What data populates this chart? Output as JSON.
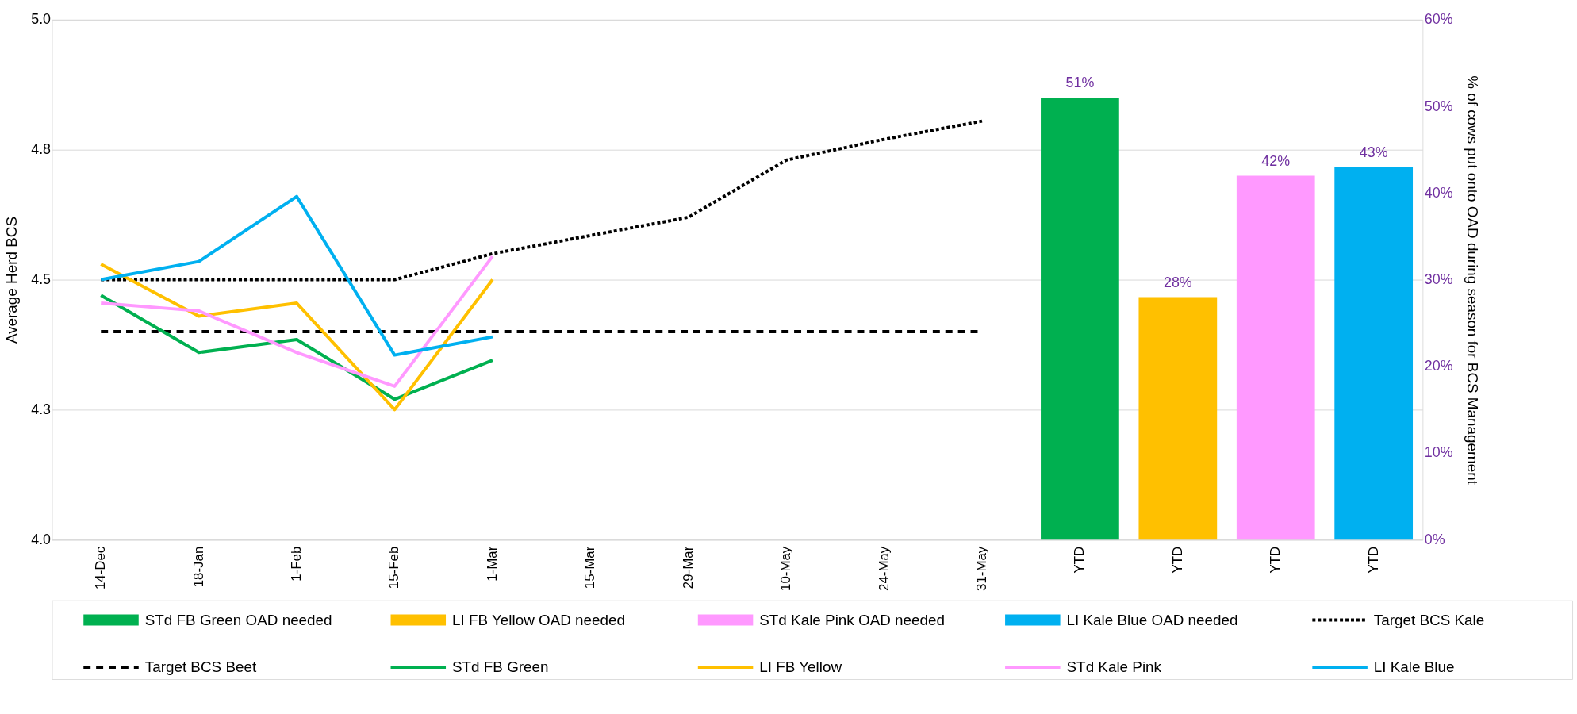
{
  "chart_data": {
    "type": "bar",
    "categories": [
      "14-Dec",
      "18-Jan",
      "1-Feb",
      "15-Feb",
      "1-Mar",
      "15-Mar",
      "29-Mar",
      "10-May",
      "24-May",
      "31-May",
      "YTD",
      "YTD",
      "YTD",
      "YTD"
    ],
    "ylabel": "Average Herd BCS",
    "y2label": "% of cows put onto OAD during season for BCS Management",
    "ylim": [
      4,
      5
    ],
    "yticks": [
      {
        "value": 4,
        "label": "4.0"
      },
      {
        "value": 4.25,
        "label": "4.3"
      },
      4.5,
      {
        "value": 4.75,
        "label": "4.8"
      },
      {
        "value": 5,
        "label": "5.0"
      }
    ],
    "y2lim": [
      0,
      60
    ],
    "y2ticks": [
      {
        "value": 0,
        "label": "0%"
      },
      {
        "value": 10,
        "label": "10%"
      },
      {
        "value": 20,
        "label": "20%"
      },
      {
        "value": 30,
        "label": "30%"
      },
      {
        "value": 40,
        "label": "40%"
      },
      {
        "value": 50,
        "label": "50%"
      },
      {
        "value": 60,
        "label": "60%"
      }
    ],
    "grid": "y",
    "legend": "bottom",
    "series": [
      {
        "name": "STd FB Green OAD needed",
        "axis": "y2",
        "color": "#00b050",
        "values": [
          null,
          null,
          null,
          null,
          null,
          null,
          null,
          null,
          null,
          null,
          51,
          null,
          null,
          null
        ],
        "value_labels": [
          null,
          null,
          null,
          null,
          null,
          null,
          null,
          null,
          null,
          null,
          "51%",
          null,
          null,
          null
        ]
      },
      {
        "name": "LI FB Yellow OAD needed",
        "axis": "y2",
        "color": "#ffc000",
        "values": [
          null,
          null,
          null,
          null,
          null,
          null,
          null,
          null,
          null,
          null,
          null,
          28,
          null,
          null
        ],
        "value_labels": [
          null,
          null,
          null,
          null,
          null,
          null,
          null,
          null,
          null,
          null,
          null,
          "28%",
          null,
          null
        ]
      },
      {
        "name": "STd Kale Pink OAD needed",
        "axis": "y2",
        "color": "#ff99ff",
        "values": [
          null,
          null,
          null,
          null,
          null,
          null,
          null,
          null,
          null,
          null,
          null,
          null,
          42,
          null
        ],
        "value_labels": [
          null,
          null,
          null,
          null,
          null,
          null,
          null,
          null,
          null,
          null,
          null,
          null,
          "42%",
          null
        ]
      },
      {
        "name": "LI Kale Blue OAD needed",
        "axis": "y2",
        "color": "#00b0f0",
        "values": [
          null,
          null,
          null,
          null,
          null,
          null,
          null,
          null,
          null,
          null,
          null,
          null,
          null,
          43
        ],
        "value_labels": [
          null,
          null,
          null,
          null,
          null,
          null,
          null,
          null,
          null,
          null,
          null,
          null,
          null,
          "43%"
        ]
      },
      {
        "name": "Target BCS Kale",
        "type": "line",
        "line_style": "dotted",
        "color": "#000000",
        "values": [
          4.5,
          4.5,
          4.5,
          4.5,
          4.55,
          4.585,
          4.62,
          4.73,
          4.77,
          4.805,
          null,
          null,
          null,
          null
        ]
      },
      {
        "name": "Target BCS Beet",
        "type": "line",
        "line_style": "dashed",
        "color": "#000000",
        "values": [
          4.4,
          4.4,
          4.4,
          4.4,
          4.4,
          4.4,
          4.4,
          4.4,
          4.4,
          4.4,
          null,
          null,
          null,
          null
        ]
      },
      {
        "name": "STd FB Green",
        "type": "line",
        "line_style": "solid",
        "color": "#00b050",
        "values": [
          4.47,
          4.36,
          4.385,
          4.27,
          4.345,
          null,
          null,
          null,
          null,
          null,
          null,
          null,
          null,
          null
        ]
      },
      {
        "name": "LI FB Yellow",
        "type": "line",
        "line_style": "solid",
        "color": "#ffc000",
        "values": [
          4.53,
          4.43,
          4.455,
          4.25,
          4.5,
          null,
          null,
          null,
          null,
          null,
          null,
          null,
          null,
          null
        ]
      },
      {
        "name": "STd Kale Pink",
        "type": "line",
        "line_style": "solid",
        "color": "#ff99ff",
        "values": [
          4.455,
          4.44,
          4.36,
          4.295,
          4.545,
          null,
          null,
          null,
          null,
          null,
          null,
          null,
          null,
          null
        ]
      },
      {
        "name": "LI Kale Blue",
        "type": "line",
        "line_style": "solid",
        "color": "#00b0f0",
        "values": [
          4.5,
          4.535,
          4.66,
          4.355,
          4.39,
          null,
          null,
          null,
          null,
          null,
          null,
          null,
          null,
          null
        ]
      }
    ]
  }
}
